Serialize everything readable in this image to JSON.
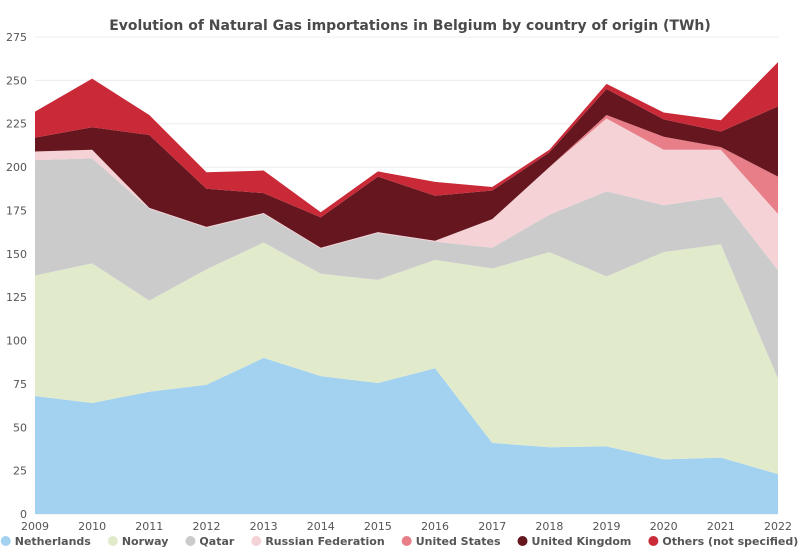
{
  "chart_data": {
    "type": "area",
    "stacked": true,
    "title": "Evolution of Natural Gas importations in Belgium by country of origin (TWh)",
    "xlabel": "",
    "ylabel": "",
    "x": [
      "2009",
      "2010",
      "2011",
      "2012",
      "2013",
      "2014",
      "2015",
      "2016",
      "2017",
      "2018",
      "2019",
      "2020",
      "2021",
      "2022"
    ],
    "ylim": [
      0,
      275
    ],
    "yticks": [
      0,
      25,
      50,
      75,
      100,
      125,
      150,
      175,
      200,
      225,
      250,
      275
    ],
    "grid": true,
    "legend_position": "bottom",
    "series": [
      {
        "name": "Netherlands",
        "color": "#a3d1f0",
        "values": [
          68,
          64,
          70.5,
          74.5,
          90,
          79.5,
          75.5,
          84,
          41,
          38.5,
          39,
          31.5,
          32.5,
          23
        ]
      },
      {
        "name": "Norway",
        "color": "#e1ebcb",
        "values": [
          69.5,
          80.5,
          52.5,
          66.5,
          66.5,
          59,
          59.5,
          62.5,
          100.5,
          112.5,
          98,
          119.5,
          123,
          55
        ]
      },
      {
        "name": "Qatar",
        "color": "#cbcbcb",
        "values": [
          66.5,
          60.5,
          53,
          24,
          16.5,
          14.5,
          27,
          10.5,
          12,
          21.5,
          49,
          27,
          27.5,
          62.5
        ]
      },
      {
        "name": "Russian Federation",
        "color": "#f4d2d6",
        "values": [
          5,
          5,
          0.5,
          0.5,
          0.5,
          0.5,
          0.5,
          0.5,
          16.5,
          27.5,
          42,
          32,
          27,
          32.5
        ]
      },
      {
        "name": "United States",
        "color": "#e87e87",
        "values": [
          0,
          0,
          0,
          0,
          0,
          0,
          0,
          0,
          0,
          0,
          2,
          7.5,
          1.5,
          21.5
        ]
      },
      {
        "name": "United Kingdom",
        "color": "#66161e",
        "values": [
          8,
          13,
          42,
          22,
          11.5,
          17.5,
          32,
          26,
          16.5,
          8.5,
          15,
          10,
          9,
          40.5
        ]
      },
      {
        "name": "Others (not specified)",
        "color": "#ca2a38",
        "values": [
          15,
          28,
          11.5,
          9.5,
          13,
          3,
          3,
          8,
          2,
          1.5,
          3,
          4,
          6.5,
          25.5
        ]
      }
    ]
  }
}
